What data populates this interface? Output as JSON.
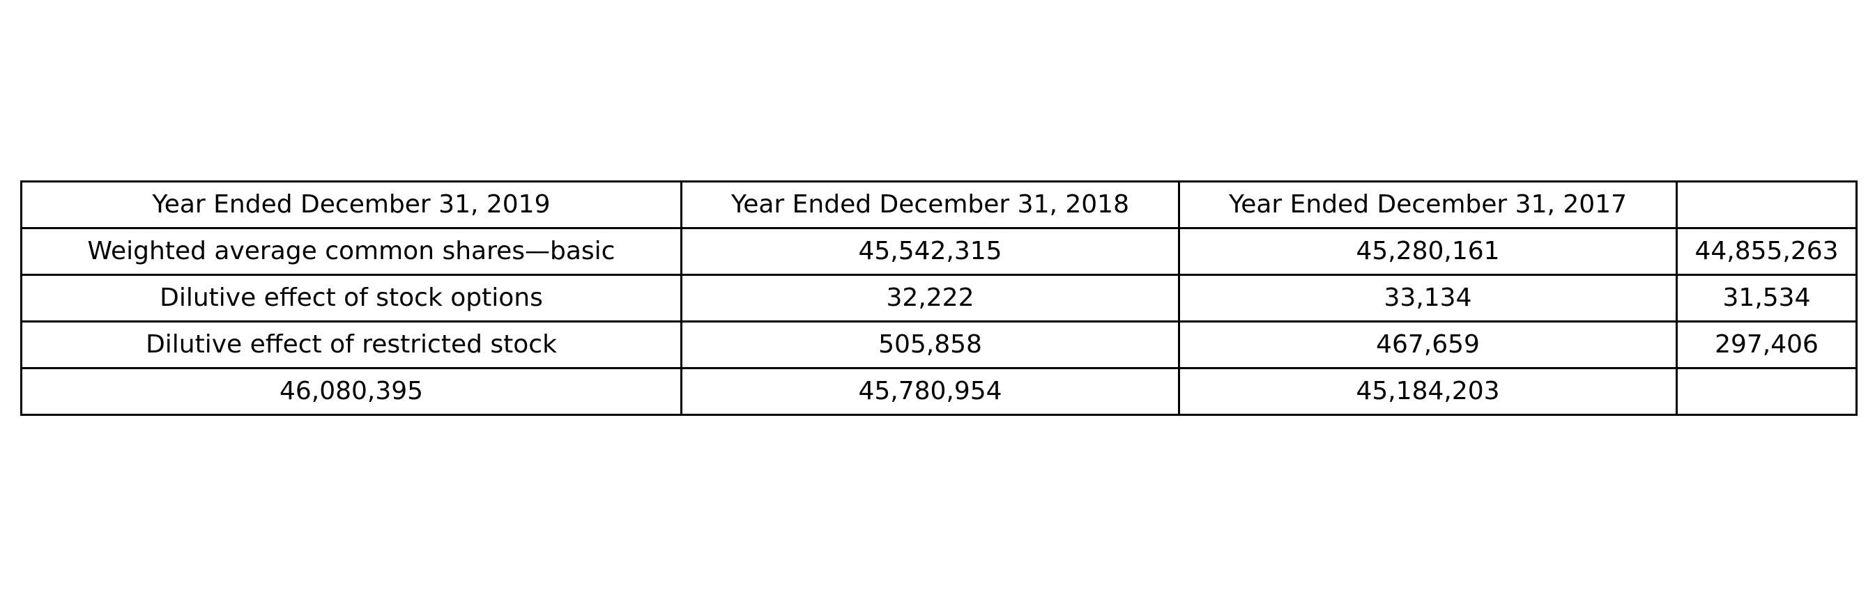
{
  "chart_data": {
    "type": "table",
    "rows": [
      [
        "Year Ended December 31, 2019",
        "Year Ended December 31, 2018",
        "Year Ended December 31, 2017",
        ""
      ],
      [
        "Weighted average common shares—basic",
        "45,542,315",
        "45,280,161",
        "44,855,263"
      ],
      [
        "Dilutive effect of stock options",
        "32,222",
        "33,134",
        "31,534"
      ],
      [
        "Dilutive effect of restricted stock",
        "505,858",
        "467,659",
        "297,406"
      ],
      [
        "46,080,395",
        "45,780,954",
        "45,184,203",
        ""
      ]
    ]
  }
}
